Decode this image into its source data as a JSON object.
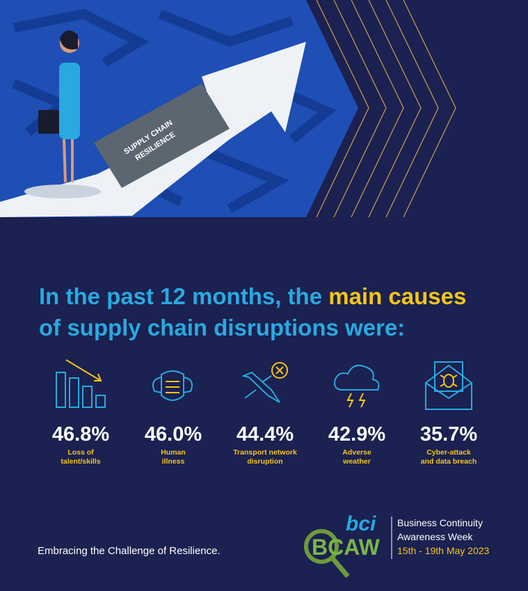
{
  "illustration": {
    "arrow_label": [
      "SUPPLY CHAIN",
      "RESILIENCE"
    ]
  },
  "headline": {
    "part1": "In the past 12 months, the",
    "highlight": "main causes",
    "part2": "of supply chain disruptions were:"
  },
  "stats": [
    {
      "value": "46.8%",
      "label": [
        "Loss of",
        "talent/skills"
      ]
    },
    {
      "value": "46.0%",
      "label": [
        "Human",
        "illness"
      ]
    },
    {
      "value": "44.4%",
      "label": [
        "Transport network",
        "disruption"
      ]
    },
    {
      "value": "42.9%",
      "label": [
        "Adverse",
        "weather"
      ]
    },
    {
      "value": "35.7%",
      "label": [
        "Cyber-attack",
        "and data breach"
      ]
    }
  ],
  "footer": {
    "tagline": "Embracing the Challenge of Resilience.",
    "logo": {
      "bci": "bci",
      "bcaw": "BCAW",
      "line1": "Business Continuity",
      "line2": "Awareness Week",
      "dates": "15th - 19th May 2023"
    }
  }
}
